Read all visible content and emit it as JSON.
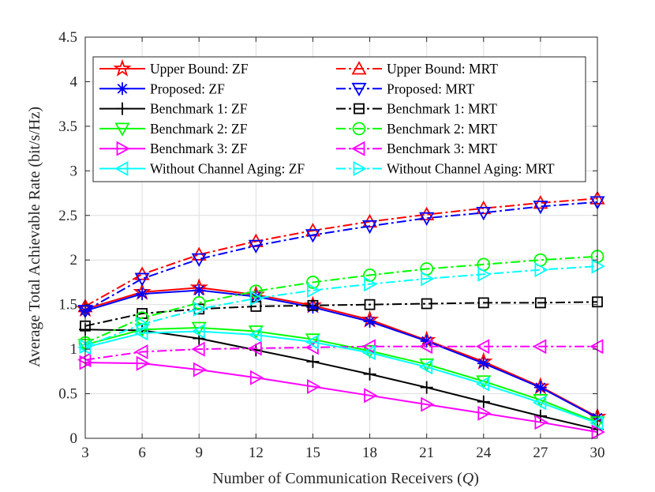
{
  "chart_data": {
    "type": "line",
    "title": "",
    "xlabel": "Number of Communication Receivers (",
    "xlabel_var": "Q",
    "xlabel_end": ")",
    "ylabel": "Average Total Achievable Rate (bit/s/Hz)",
    "x": [
      3,
      6,
      9,
      12,
      15,
      18,
      21,
      24,
      27,
      30
    ],
    "xlim": [
      3,
      30
    ],
    "ylim": [
      0,
      4.5
    ],
    "xticks": [
      "3",
      "6",
      "9",
      "12",
      "15",
      "18",
      "21",
      "24",
      "27",
      "30"
    ],
    "yticks": [
      "0",
      "0.5",
      "1",
      "1.5",
      "2",
      "2.5",
      "3",
      "3.5",
      "4",
      "4.5"
    ],
    "grid": true,
    "legend_location": "top-left",
    "series": [
      {
        "name": "Upper Bound: ZF",
        "color": "#ff0000",
        "dash": "solid",
        "marker": "pentagram",
        "values": [
          1.45,
          1.64,
          1.69,
          1.61,
          1.49,
          1.33,
          1.1,
          0.86,
          0.58,
          0.24
        ]
      },
      {
        "name": "Upper Bound: MRT",
        "color": "#ff0000",
        "dash": "dashdot",
        "marker": "triangle-up",
        "values": [
          1.48,
          1.84,
          2.06,
          2.21,
          2.33,
          2.43,
          2.51,
          2.58,
          2.64,
          2.69
        ]
      },
      {
        "name": "Proposed: ZF",
        "color": "#0000ff",
        "dash": "solid",
        "marker": "asterisk",
        "values": [
          1.43,
          1.62,
          1.66,
          1.59,
          1.47,
          1.31,
          1.09,
          0.84,
          0.57,
          0.23
        ]
      },
      {
        "name": "Proposed: MRT",
        "color": "#0000ff",
        "dash": "dashdot",
        "marker": "triangle-down",
        "values": [
          1.43,
          1.79,
          2.01,
          2.16,
          2.28,
          2.38,
          2.47,
          2.53,
          2.6,
          2.65
        ]
      },
      {
        "name": "Benchmark 1: ZF",
        "color": "#000000",
        "dash": "solid",
        "marker": "plus",
        "values": [
          1.22,
          1.21,
          1.12,
          0.99,
          0.86,
          0.72,
          0.57,
          0.41,
          0.25,
          0.1
        ]
      },
      {
        "name": "Benchmark 1: MRT",
        "color": "#000000",
        "dash": "dashdot",
        "marker": "square",
        "values": [
          1.26,
          1.4,
          1.45,
          1.48,
          1.49,
          1.5,
          1.51,
          1.52,
          1.52,
          1.53
        ]
      },
      {
        "name": "Benchmark 2: ZF",
        "color": "#00ff00",
        "dash": "solid",
        "marker": "triangle-down",
        "values": [
          1.05,
          1.22,
          1.24,
          1.2,
          1.11,
          0.98,
          0.83,
          0.64,
          0.43,
          0.18
        ]
      },
      {
        "name": "Benchmark 2: MRT",
        "color": "#00ff00",
        "dash": "dashdot",
        "marker": "circle",
        "values": [
          1.07,
          1.35,
          1.52,
          1.65,
          1.75,
          1.83,
          1.9,
          1.95,
          2.0,
          2.04
        ]
      },
      {
        "name": "Benchmark 3: ZF",
        "color": "#ff00ff",
        "dash": "solid",
        "marker": "triangle-right",
        "values": [
          0.85,
          0.84,
          0.77,
          0.68,
          0.58,
          0.48,
          0.38,
          0.28,
          0.18,
          0.07
        ]
      },
      {
        "name": "Benchmark 3: MRT",
        "color": "#ff00ff",
        "dash": "dashdot",
        "marker": "triangle-left",
        "values": [
          0.88,
          0.97,
          1.0,
          1.01,
          1.02,
          1.03,
          1.03,
          1.03,
          1.03,
          1.03
        ]
      },
      {
        "name": "Without Channel Aging: ZF",
        "color": "#00ffff",
        "dash": "solid",
        "marker": "triangle-left",
        "values": [
          1.02,
          1.18,
          1.2,
          1.16,
          1.08,
          0.96,
          0.8,
          0.61,
          0.4,
          0.17
        ]
      },
      {
        "name": "Without Channel Aging: MRT",
        "color": "#00ffff",
        "dash": "dashdot",
        "marker": "triangle-right",
        "values": [
          1.03,
          1.28,
          1.45,
          1.57,
          1.66,
          1.73,
          1.79,
          1.84,
          1.89,
          1.93
        ]
      }
    ],
    "legend_order": [
      [
        "Upper Bound: ZF",
        "Upper Bound: MRT"
      ],
      [
        "Proposed: ZF",
        "Proposed: MRT"
      ],
      [
        "Benchmark 1: ZF",
        "Benchmark 1: MRT"
      ],
      [
        "Benchmark 2: ZF",
        "Benchmark 2: MRT"
      ],
      [
        "Benchmark 3: ZF",
        "Benchmark 3: MRT"
      ],
      [
        "Without Channel Aging: ZF",
        "Without Channel Aging: MRT"
      ]
    ]
  }
}
